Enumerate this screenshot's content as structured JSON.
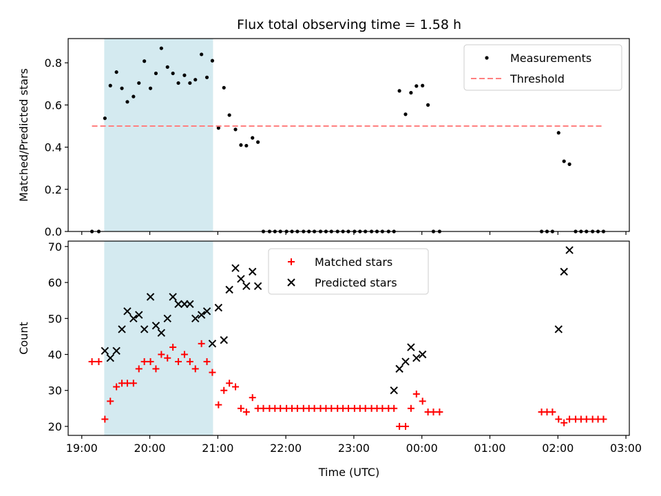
{
  "chart_data": {
    "title": "Flux total observing time = 1.58 h",
    "x_axis": {
      "label": "Time (UTC)",
      "range_hours": [
        -0.2,
        8.05
      ],
      "tick_hours": [
        0,
        1,
        2,
        3,
        4,
        5,
        6,
        7,
        8
      ],
      "tick_labels": [
        "19:00",
        "20:00",
        "21:00",
        "22:00",
        "23:00",
        "00:00",
        "01:00",
        "02:00",
        "03:00"
      ]
    },
    "shaded_interval_hours": [
      0.33,
      1.93
    ],
    "shade_color": "#d4eaf0",
    "panels": [
      {
        "type": "scatter",
        "ylabel": "Matched/Predicted stars",
        "ylim": [
          0,
          0.915
        ],
        "yticks": [
          0.0,
          0.2,
          0.4,
          0.6,
          0.8
        ],
        "ytick_labels": [
          "0.0",
          "0.2",
          "0.4",
          "0.6",
          "0.8"
        ],
        "legend": {
          "placement": "upper-right",
          "entries": [
            "Measurements",
            "Threshold"
          ]
        },
        "series": [
          {
            "name": "Measurements",
            "marker": "dot",
            "color": "#000000",
            "x": [
              0.15,
              0.25,
              0.34,
              0.42,
              0.51,
              0.59,
              0.67,
              0.76,
              0.84,
              0.92,
              1.01,
              1.09,
              1.17,
              1.26,
              1.34,
              1.42,
              1.51,
              1.59,
              1.67,
              1.76,
              1.84,
              1.92,
              2.01,
              2.09,
              2.17,
              2.26,
              2.34,
              2.42,
              2.51,
              2.59,
              2.67,
              2.76,
              2.84,
              2.92,
              3.01,
              3.09,
              3.17,
              3.26,
              3.34,
              3.42,
              3.51,
              3.59,
              3.67,
              3.76,
              3.84,
              3.92,
              4.01,
              4.09,
              4.17,
              4.26,
              4.34,
              4.42,
              4.51,
              4.59,
              4.67,
              4.76,
              4.84,
              4.92,
              5.01,
              5.09,
              5.17,
              5.26,
              6.76,
              6.84,
              6.92,
              7.01,
              7.09,
              7.17,
              7.26,
              7.34,
              7.42,
              7.51,
              7.59,
              7.67
            ],
            "y": [
              0.0,
              0.0,
              0.537,
              0.692,
              0.756,
              0.679,
              0.615,
              0.64,
              0.704,
              0.808,
              0.679,
              0.75,
              0.869,
              0.78,
              0.75,
              0.704,
              0.741,
              0.704,
              0.72,
              0.84,
              0.731,
              0.81,
              0.491,
              0.682,
              0.552,
              0.484,
              0.41,
              0.407,
              0.444,
              0.424,
              0.0,
              0.0,
              0.0,
              0.0,
              0.0,
              0.0,
              0.0,
              0.0,
              0.0,
              0.0,
              0.0,
              0.0,
              0.0,
              0.0,
              0.0,
              0.0,
              0.0,
              0.0,
              0.0,
              0.0,
              0.0,
              0.0,
              0.0,
              0.0,
              0.667,
              0.556,
              0.658,
              0.69,
              0.692,
              0.6,
              0.0,
              0.0,
              0.0,
              0.0,
              0.0,
              0.468,
              0.333,
              0.319,
              0.0,
              0.0,
              0.0,
              0.0,
              0.0,
              0.0
            ]
          },
          {
            "name": "Threshold",
            "type": "line",
            "style": "dashed",
            "color": "#ff7f7f",
            "x": [
              0.15,
              7.67
            ],
            "y": [
              0.5,
              0.5
            ]
          }
        ]
      },
      {
        "type": "scatter",
        "ylabel": "Count",
        "ylim": [
          17.5,
          71.5
        ],
        "yticks": [
          20,
          30,
          40,
          50,
          60,
          70
        ],
        "ytick_labels": [
          "20",
          "30",
          "40",
          "50",
          "60",
          "70"
        ],
        "legend": {
          "placement": "upper-center",
          "entries": [
            "Matched stars",
            "Predicted stars"
          ]
        },
        "series": [
          {
            "name": "Matched stars",
            "marker": "plus",
            "color": "#ff0000",
            "x": [
              0.15,
              0.25,
              0.34,
              0.42,
              0.51,
              0.59,
              0.67,
              0.76,
              0.84,
              0.92,
              1.01,
              1.09,
              1.17,
              1.26,
              1.34,
              1.42,
              1.51,
              1.59,
              1.67,
              1.76,
              1.84,
              1.92,
              2.01,
              2.09,
              2.17,
              2.26,
              2.34,
              2.42,
              2.51,
              2.59,
              2.67,
              2.76,
              2.84,
              2.92,
              3.01,
              3.09,
              3.17,
              3.26,
              3.34,
              3.42,
              3.51,
              3.59,
              3.67,
              3.76,
              3.84,
              3.92,
              4.01,
              4.09,
              4.17,
              4.26,
              4.34,
              4.42,
              4.51,
              4.59,
              4.67,
              4.76,
              4.84,
              4.92,
              5.01,
              5.09,
              5.17,
              5.26,
              6.76,
              6.84,
              6.92,
              7.01,
              7.09,
              7.17,
              7.26,
              7.34,
              7.42,
              7.51,
              7.59,
              7.67
            ],
            "y": [
              38,
              38,
              22,
              27,
              31,
              32,
              32,
              32,
              36,
              38,
              38,
              36,
              40,
              39,
              42,
              38,
              40,
              38,
              36,
              43,
              38,
              35,
              26,
              30,
              32,
              31,
              25,
              24,
              28,
              25,
              25,
              25,
              25,
              25,
              25,
              25,
              25,
              25,
              25,
              25,
              25,
              25,
              25,
              25,
              25,
              25,
              25,
              25,
              25,
              25,
              25,
              25,
              25,
              25,
              20,
              20,
              25,
              29,
              27,
              24,
              24,
              24,
              24,
              24,
              24,
              22,
              21,
              22,
              22,
              22,
              22,
              22,
              22,
              22
            ]
          },
          {
            "name": "Predicted stars",
            "marker": "x",
            "color": "#000000",
            "x": [
              0.34,
              0.42,
              0.51,
              0.59,
              0.67,
              0.76,
              0.84,
              0.92,
              1.01,
              1.09,
              1.17,
              1.26,
              1.34,
              1.42,
              1.51,
              1.59,
              1.67,
              1.76,
              1.84,
              1.92,
              2.01,
              2.09,
              2.17,
              2.26,
              2.34,
              2.42,
              2.51,
              2.59,
              4.59,
              4.67,
              4.76,
              4.84,
              4.92,
              5.01,
              7.01,
              7.09,
              7.17
            ],
            "y": [
              41,
              39,
              41,
              47,
              52,
              50,
              51,
              47,
              56,
              48,
              46,
              50,
              56,
              54,
              54,
              54,
              50,
              51,
              52,
              43,
              53,
              44,
              58,
              64,
              61,
              59,
              63,
              59,
              30,
              36,
              38,
              42,
              39,
              40,
              47,
              63,
              69
            ]
          }
        ]
      }
    ]
  }
}
